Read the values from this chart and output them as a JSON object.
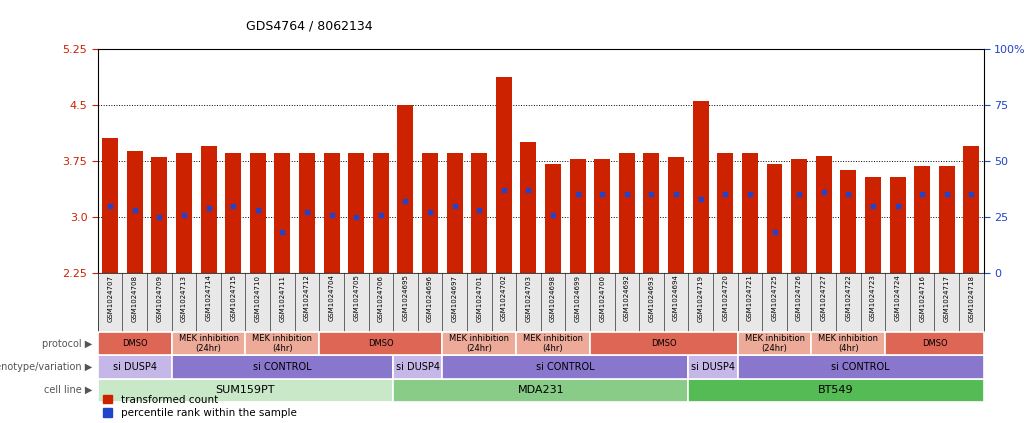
{
  "title": "GDS4764 / 8062134",
  "ylim_left": [
    2.25,
    5.25
  ],
  "ylim_right": [
    0,
    100
  ],
  "yticks_left": [
    2.25,
    3.0,
    3.75,
    4.5,
    5.25
  ],
  "yticks_right": [
    0,
    25,
    50,
    75,
    100
  ],
  "bar_bottom": 2.25,
  "samples": [
    "GSM1024707",
    "GSM1024708",
    "GSM1024709",
    "GSM1024713",
    "GSM1024714",
    "GSM1024715",
    "GSM1024710",
    "GSM1024711",
    "GSM1024712",
    "GSM1024704",
    "GSM1024705",
    "GSM1024706",
    "GSM1024695",
    "GSM1024696",
    "GSM1024697",
    "GSM1024701",
    "GSM1024702",
    "GSM1024703",
    "GSM1024698",
    "GSM1024699",
    "GSM1024700",
    "GSM1024692",
    "GSM1024693",
    "GSM1024694",
    "GSM1024719",
    "GSM1024720",
    "GSM1024721",
    "GSM1024725",
    "GSM1024726",
    "GSM1024727",
    "GSM1024722",
    "GSM1024723",
    "GSM1024724",
    "GSM1024716",
    "GSM1024717",
    "GSM1024718"
  ],
  "bar_heights": [
    4.05,
    3.88,
    3.8,
    3.85,
    3.95,
    3.85,
    3.85,
    3.85,
    3.85,
    3.85,
    3.85,
    3.85,
    4.5,
    3.85,
    3.85,
    3.85,
    4.87,
    4.0,
    3.7,
    3.77,
    3.77,
    3.85,
    3.85,
    3.8,
    4.55,
    3.85,
    3.85,
    3.7,
    3.77,
    3.82,
    3.63,
    3.53,
    3.53,
    3.68,
    3.68,
    3.95
  ],
  "blue_positions_pct": [
    30,
    28,
    25,
    26,
    29,
    30,
    28,
    18,
    27,
    26,
    25,
    26,
    32,
    27,
    30,
    28,
    37,
    37,
    26,
    35,
    35,
    35,
    35,
    35,
    33,
    35,
    35,
    18,
    35,
    36,
    35,
    30,
    30,
    35,
    35,
    35
  ],
  "cell_line_groups": [
    {
      "label": "SUM159PT",
      "start": 0,
      "end": 12,
      "color": "#c8e8c8"
    },
    {
      "label": "MDA231",
      "start": 12,
      "end": 24,
      "color": "#88cc88"
    },
    {
      "label": "BT549",
      "start": 24,
      "end": 36,
      "color": "#55bb55"
    }
  ],
  "genotype_groups": [
    {
      "label": "si DUSP4",
      "start": 0,
      "end": 3,
      "color": "#c5b8e8"
    },
    {
      "label": "si CONTROL",
      "start": 3,
      "end": 12,
      "color": "#8877cc"
    },
    {
      "label": "si DUSP4",
      "start": 12,
      "end": 14,
      "color": "#c5b8e8"
    },
    {
      "label": "si CONTROL",
      "start": 14,
      "end": 24,
      "color": "#8877cc"
    },
    {
      "label": "si DUSP4",
      "start": 24,
      "end": 26,
      "color": "#c5b8e8"
    },
    {
      "label": "si CONTROL",
      "start": 26,
      "end": 36,
      "color": "#8877cc"
    }
  ],
  "protocol_groups": [
    {
      "label": "DMSO",
      "start": 0,
      "end": 3,
      "color": "#dd6655"
    },
    {
      "label": "MEK inhibition\n(24hr)",
      "start": 3,
      "end": 6,
      "color": "#eeaa99"
    },
    {
      "label": "MEK inhibition\n(4hr)",
      "start": 6,
      "end": 9,
      "color": "#eeaa99"
    },
    {
      "label": "DMSO",
      "start": 9,
      "end": 14,
      "color": "#dd6655"
    },
    {
      "label": "MEK inhibition\n(24hr)",
      "start": 14,
      "end": 17,
      "color": "#eeaa99"
    },
    {
      "label": "MEK inhibition\n(4hr)",
      "start": 17,
      "end": 20,
      "color": "#eeaa99"
    },
    {
      "label": "DMSO",
      "start": 20,
      "end": 26,
      "color": "#dd6655"
    },
    {
      "label": "MEK inhibition\n(24hr)",
      "start": 26,
      "end": 29,
      "color": "#eeaa99"
    },
    {
      "label": "MEK inhibition\n(4hr)",
      "start": 29,
      "end": 32,
      "color": "#eeaa99"
    },
    {
      "label": "DMSO",
      "start": 32,
      "end": 36,
      "color": "#dd6655"
    }
  ],
  "bar_color": "#cc2200",
  "blue_color": "#2244cc",
  "axis_label_color_left": "#cc2200",
  "axis_label_color_right": "#2244cc",
  "legend_items": [
    {
      "label": "transformed count",
      "color": "#cc2200"
    },
    {
      "label": "percentile rank within the sample",
      "color": "#2244cc"
    }
  ]
}
